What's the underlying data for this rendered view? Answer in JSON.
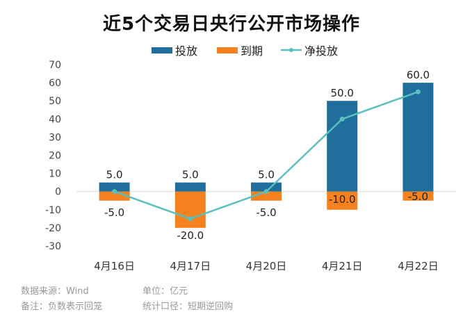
{
  "chart_data": {
    "type": "bar",
    "title": "近5个交易日央行公开市场操作",
    "categories": [
      "4月16日",
      "4月17日",
      "4月20日",
      "4月21日",
      "4月22日"
    ],
    "series": [
      {
        "name": "投放",
        "type": "bar",
        "color": "#1f6e9c",
        "values": [
          5.0,
          5.0,
          5.0,
          50.0,
          60.0
        ],
        "labels": [
          "5.0",
          "5.0",
          "5.0",
          "50.0",
          "60.0"
        ]
      },
      {
        "name": "到期",
        "type": "bar",
        "color": "#f5821f",
        "values": [
          -5.0,
          -20.0,
          -5.0,
          -10.0,
          -5.0
        ],
        "labels": [
          "-5.0",
          "-20.0",
          "-5.0",
          "-10.0",
          "-5.0"
        ]
      },
      {
        "name": "净投放",
        "type": "line",
        "color": "#5bbfbf",
        "values": [
          0,
          -15,
          0,
          40,
          55
        ]
      }
    ],
    "ylim": [
      -30,
      70
    ],
    "yticks": [
      "70",
      "60",
      "50",
      "40",
      "30",
      "20",
      "10",
      "0",
      "-10",
      "-20",
      "-30"
    ],
    "legend": "top",
    "grid": false
  },
  "footer": {
    "source": "数据来源：Wind",
    "unit": "单位：亿元",
    "note": "备注：负数表示回笼",
    "scope": "统计口径：短期逆回购"
  }
}
